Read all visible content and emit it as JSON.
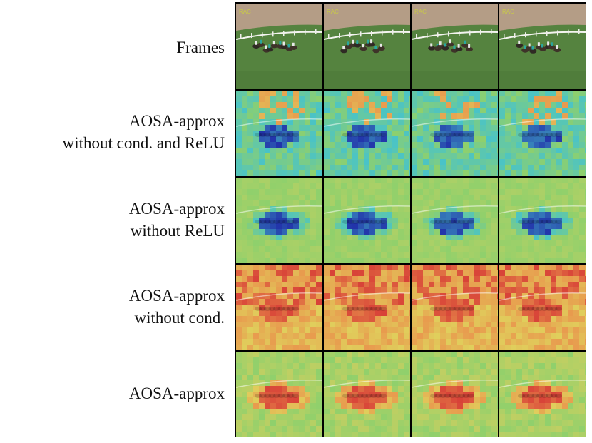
{
  "rows": [
    {
      "label_lines": [
        "Frames"
      ],
      "type": "frames"
    },
    {
      "label_lines": [
        "AOSA-approx",
        "without cond. and ReLU"
      ],
      "type": "heat-blue-mix"
    },
    {
      "label_lines": [
        "AOSA-approx",
        "without ReLU"
      ],
      "type": "heat-green-blue"
    },
    {
      "label_lines": [
        "AOSA-approx",
        "without cond."
      ],
      "type": "heat-red"
    },
    {
      "label_lines": [
        "AOSA-approx"
      ],
      "type": "heat-green-red"
    }
  ],
  "frame_count": 4,
  "overlay_text": "RAC",
  "colors": {
    "track": "#b49d86",
    "grass": "#55833f",
    "heat_blue": "#2233aa",
    "heat_cyan": "#49c3c8",
    "heat_green": "#8fd06c",
    "heat_yellow": "#e0cf5c",
    "heat_orange": "#e89a4e",
    "heat_red": "#d84238"
  }
}
